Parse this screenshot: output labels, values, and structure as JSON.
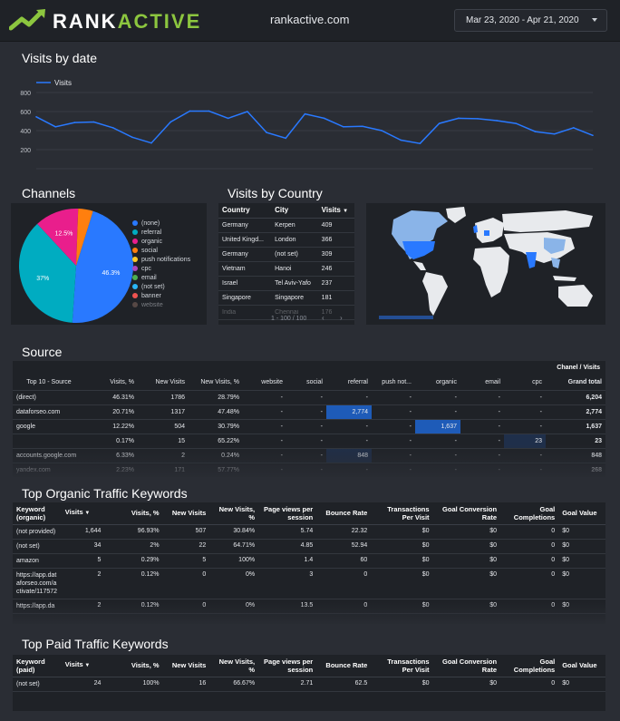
{
  "header": {
    "brand_part1": "RANK",
    "brand_part2": "ACTIVE",
    "site": "rankactive.com",
    "date_range": "Mar 23, 2020 - Apr 21, 2020"
  },
  "visits_by_date": {
    "title": "Visits by date",
    "chart_data": {
      "type": "line",
      "series": [
        {
          "name": "Visits",
          "values": [
            545,
            440,
            485,
            490,
            430,
            330,
            270,
            490,
            605,
            605,
            530,
            600,
            380,
            320,
            575,
            530,
            440,
            445,
            400,
            300,
            265,
            475,
            530,
            525,
            505,
            475,
            390,
            365,
            430,
            350
          ]
        }
      ],
      "yticks": [
        "800",
        "600",
        "400",
        "200"
      ],
      "ylim": [
        0,
        800
      ],
      "color": "#2979ff"
    }
  },
  "channels": {
    "title": "Channels",
    "chart_data": {
      "type": "pie",
      "slices": [
        {
          "label": "(none)",
          "value": 46.3,
          "color": "#2979ff",
          "shown": "46.3%"
        },
        {
          "label": "referral",
          "value": 37,
          "color": "#00acc1",
          "shown": "37%"
        },
        {
          "label": "organic",
          "value": 12.5,
          "color": "#e91e8c",
          "shown": "12.5%"
        },
        {
          "label": "social",
          "value": 4.2,
          "color": "#ff7f0e",
          "shown": ""
        }
      ],
      "legend": [
        {
          "label": "(none)",
          "color": "#2979ff"
        },
        {
          "label": "referral",
          "color": "#00acc1"
        },
        {
          "label": "organic",
          "color": "#e91e8c"
        },
        {
          "label": "social",
          "color": "#ff7f0e"
        },
        {
          "label": "push notifications",
          "color": "#ffca28"
        },
        {
          "label": "cpc",
          "color": "#ab47bc"
        },
        {
          "label": "email",
          "color": "#4caf50"
        },
        {
          "label": "(not set)",
          "color": "#29b6f6"
        },
        {
          "label": "banner",
          "color": "#ef5350"
        },
        {
          "label": "website",
          "color": "#8d6e63"
        }
      ]
    }
  },
  "country": {
    "title": "Visits by Country",
    "headers": [
      "Country",
      "City",
      "Visits"
    ],
    "rows": [
      [
        "Germany",
        "Kerpen",
        "409"
      ],
      [
        "United Kingd...",
        "London",
        "366"
      ],
      [
        "Germany",
        "(not set)",
        "309"
      ],
      [
        "Vietnam",
        "Hanoi",
        "246"
      ],
      [
        "Israel",
        "Tel Aviv-Yafo",
        "237"
      ],
      [
        "Singapore",
        "Singapore",
        "181"
      ],
      [
        "India",
        "Chennai",
        "176"
      ]
    ],
    "pager": "1 - 100 / 100"
  },
  "source": {
    "title": "Source",
    "group_header": "Chanel / Visits",
    "headers": [
      "Top 10 - Source",
      "Visits, %",
      "New Visits",
      "New Visits, %",
      "website",
      "social",
      "referral",
      "push not...",
      "organic",
      "email",
      "cpc",
      "Grand total"
    ],
    "rows": [
      [
        "(direct)",
        "46.31%",
        "1786",
        "28.79%",
        "-",
        "-",
        "-",
        "-",
        "-",
        "-",
        "-",
        "6,204"
      ],
      [
        "dataforseo.com",
        "20.71%",
        "1317",
        "47.48%",
        "-",
        "-",
        "2,774",
        "-",
        "-",
        "-",
        "-",
        "2,774"
      ],
      [
        "google",
        "12.22%",
        "504",
        "30.79%",
        "-",
        "-",
        "-",
        "-",
        "1,637",
        "-",
        "-",
        "1,637"
      ],
      [
        "",
        "0.17%",
        "15",
        "65.22%",
        "-",
        "-",
        "-",
        "-",
        "-",
        "-",
        "23",
        "23"
      ],
      [
        "accounts.google.com",
        "6.33%",
        "2",
        "0.24%",
        "-",
        "-",
        "848",
        "-",
        "-",
        "-",
        "-",
        "848"
      ],
      [
        "yandex.com",
        "2.23%",
        "171",
        "57.77%",
        "-",
        "-",
        "-",
        "-",
        "-",
        "-",
        "-",
        "268"
      ]
    ]
  },
  "organic": {
    "title": "Top Organic Traffic Keywords",
    "headers": [
      "Keyword (organic)",
      "Visits",
      "Visits, %",
      "New Visits",
      "New Visits, %",
      "Page views per session",
      "Bounce Rate",
      "Transactions Per Visit",
      "Goal Conversion Rate",
      "Goal Completions",
      "Goal Value"
    ],
    "rows": [
      [
        "(not provided)",
        "1,644",
        "96.93%",
        "507",
        "30.84%",
        "5.74",
        "22.32",
        "$0",
        "$0",
        "0",
        "$0"
      ],
      [
        "(not set)",
        "34",
        "2%",
        "22",
        "64.71%",
        "4.85",
        "52.94",
        "$0",
        "$0",
        "0",
        "$0"
      ],
      [
        "amazon",
        "5",
        "0.29%",
        "5",
        "100%",
        "1.4",
        "60",
        "$0",
        "$0",
        "0",
        "$0"
      ],
      [
        "https://app.dataforseo.com/activate/117572",
        "2",
        "0.12%",
        "0",
        "0%",
        "3",
        "0",
        "$0",
        "$0",
        "0",
        "$0"
      ],
      [
        "https://app.da",
        "2",
        "0.12%",
        "0",
        "0%",
        "13.5",
        "0",
        "$0",
        "$0",
        "0",
        "$0"
      ]
    ]
  },
  "paid": {
    "title": "Top Paid Traffic Keywords",
    "headers": [
      "Keyword (paid)",
      "Visits",
      "Visits, %",
      "New Visits",
      "New Visits, %",
      "Page views per session",
      "Bounce Rate",
      "Transactions Per Visit",
      "Goal Conversion Rate",
      "Goal Completions",
      "Goal Value"
    ],
    "rows": [
      [
        "(not set)",
        "24",
        "100%",
        "16",
        "66.67%",
        "2.71",
        "62.5",
        "$0",
        "$0",
        "0",
        "$0"
      ]
    ]
  }
}
